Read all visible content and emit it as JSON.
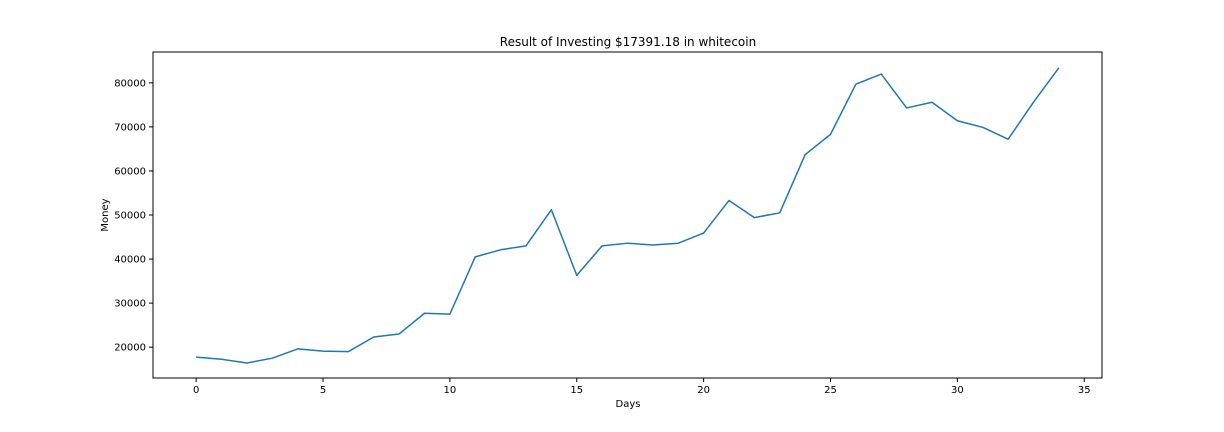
{
  "chart_data": {
    "type": "line",
    "title": "Result of Investing $17391.18 in whitecoin",
    "xlabel": "Days",
    "ylabel": "Money",
    "xlim": [
      -1.7,
      35.7
    ],
    "ylim": [
      13000,
      87000
    ],
    "xticks": [
      0,
      5,
      10,
      15,
      20,
      25,
      30,
      35
    ],
    "yticks": [
      20000,
      30000,
      40000,
      50000,
      60000,
      70000,
      80000
    ],
    "grid": false,
    "series": [
      {
        "color": "#1f77b4",
        "x": [
          0,
          1,
          2,
          3,
          4,
          5,
          6,
          7,
          8,
          9,
          10,
          11,
          12,
          13,
          14,
          15,
          16,
          17,
          18,
          19,
          20,
          21,
          22,
          23,
          24,
          25,
          26,
          27,
          28,
          29,
          30,
          31,
          32,
          33,
          34
        ],
        "y": [
          17750,
          17250,
          16400,
          17500,
          19600,
          19100,
          19000,
          22300,
          23000,
          27700,
          27500,
          40500,
          42100,
          43000,
          51200,
          36300,
          43000,
          43600,
          43200,
          43600,
          45900,
          53300,
          49400,
          50500,
          63700,
          68300,
          79700,
          82000,
          74300,
          75600,
          71400,
          69900,
          67200,
          75600,
          83400
        ]
      }
    ]
  }
}
